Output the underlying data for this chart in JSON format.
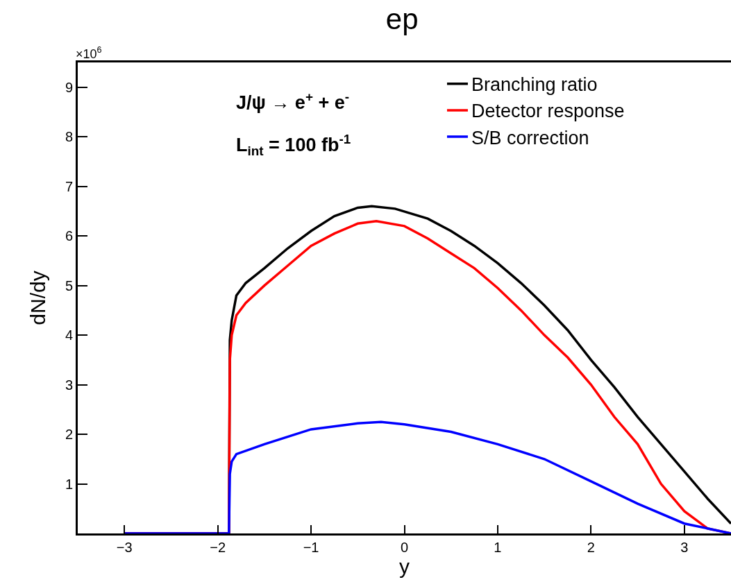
{
  "chart_data": {
    "type": "line",
    "title": "ep",
    "xlabel": "y",
    "ylabel": "dN/dy",
    "annotations": [
      "×10$^{6}$",
      "J/ψ → e$^{+}$ + e$^{-}$",
      "L$_{int}$ = 100 fb$^{-1}$"
    ],
    "legend": "top right",
    "grid": false,
    "marker": "none",
    "line_style": "solid",
    "xlim": [
      -3.5,
      3.5
    ],
    "xticks": [
      {
        "value": -3,
        "label": "−3"
      },
      {
        "value": -2,
        "label": "−2"
      },
      {
        "value": -1,
        "label": "−1"
      },
      0,
      1,
      2,
      3
    ],
    "ylim": [
      0,
      9.5
    ],
    "yticks": [
      {
        "value": 0,
        "label": null
      },
      1,
      2,
      3,
      4,
      5,
      6,
      7,
      8,
      9
    ],
    "series": [
      {
        "name": "Branching ratio",
        "color": "#000000",
        "x": [
          -3,
          -1.88,
          -1.87,
          -1.85,
          -1.8,
          -1.7,
          -1.5,
          -1.25,
          -1,
          -0.75,
          -0.5,
          -0.35,
          -0.1,
          0.25,
          0.5,
          0.75,
          1,
          1.25,
          1.5,
          1.75,
          2,
          2.25,
          2.5,
          2.75,
          3,
          3.25,
          3.5
        ],
        "values": [
          0,
          0,
          3.9,
          4.3,
          4.8,
          5.05,
          5.35,
          5.75,
          6.1,
          6.4,
          6.57,
          6.6,
          6.55,
          6.35,
          6.1,
          5.8,
          5.45,
          5.05,
          4.6,
          4.1,
          3.5,
          2.95,
          2.35,
          1.8,
          1.25,
          0.7,
          0.2
        ]
      },
      {
        "name": "Detector response",
        "color": "#ff0000",
        "x": [
          -3,
          -1.88,
          -1.87,
          -1.85,
          -1.8,
          -1.7,
          -1.5,
          -1.25,
          -1,
          -0.75,
          -0.5,
          -0.3,
          0,
          0.25,
          0.5,
          0.75,
          1,
          1.25,
          1.5,
          1.75,
          2,
          2.25,
          2.5,
          2.75,
          3,
          3.25,
          3.5
        ],
        "values": [
          0,
          0,
          3.5,
          4.0,
          4.4,
          4.65,
          5.0,
          5.4,
          5.8,
          6.05,
          6.25,
          6.3,
          6.2,
          5.95,
          5.65,
          5.35,
          4.95,
          4.5,
          4.0,
          3.55,
          3.0,
          2.35,
          1.8,
          1.0,
          0.45,
          0.1,
          0
        ]
      },
      {
        "name": "S/B correction",
        "color": "#0000ff",
        "x": [
          -3,
          -1.88,
          -1.87,
          -1.85,
          -1.8,
          -1.5,
          -1.25,
          -1,
          -0.5,
          -0.25,
          0,
          0.5,
          1,
          1.5,
          2,
          2.5,
          3,
          3.5
        ],
        "values": [
          0,
          0,
          1.2,
          1.45,
          1.6,
          1.8,
          1.95,
          2.1,
          2.22,
          2.25,
          2.2,
          2.05,
          1.8,
          1.5,
          1.05,
          0.6,
          0.2,
          0
        ]
      }
    ]
  }
}
